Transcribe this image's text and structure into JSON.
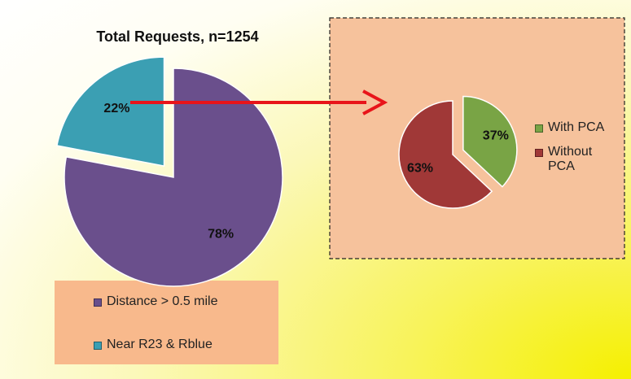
{
  "chart_data": [
    {
      "type": "pie",
      "title": "Total Requests, n=1254",
      "categories": [
        "Distance > 0.5 mile",
        "Near R23 & Rblue"
      ],
      "values": [
        78,
        22
      ],
      "value_labels": [
        "78%",
        "22%"
      ],
      "colors": [
        "#6a4f8c",
        "#3b9fb3"
      ],
      "exploded": [
        false,
        true
      ]
    },
    {
      "type": "pie",
      "categories": [
        "With PCA",
        "Without PCA"
      ],
      "values": [
        37,
        63
      ],
      "value_labels": [
        "37%",
        "63%"
      ],
      "colors": [
        "#79a445",
        "#a03837"
      ],
      "exploded": [
        true,
        false
      ]
    }
  ]
}
